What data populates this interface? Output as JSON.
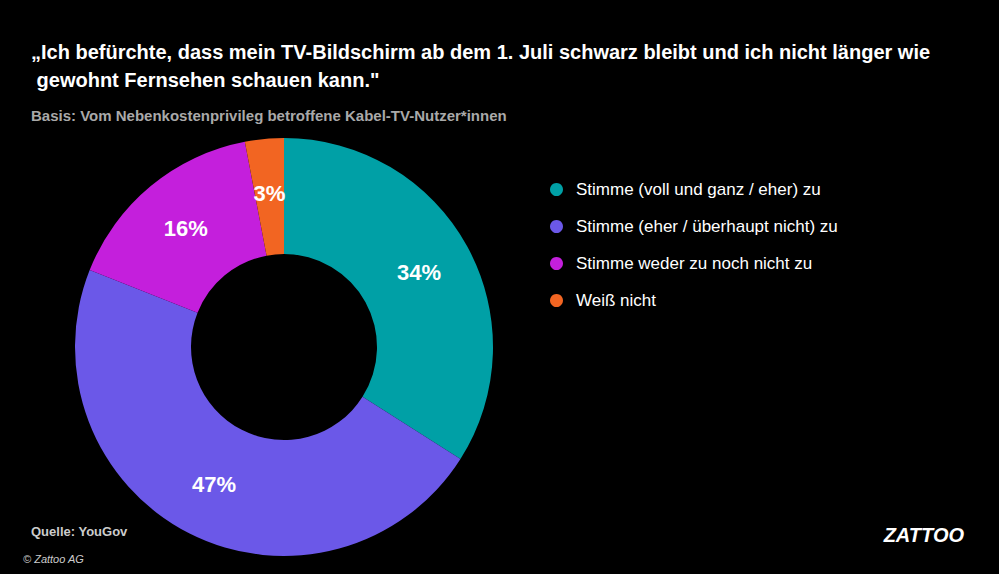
{
  "chart_data": {
    "type": "pie",
    "title": "„Ich befürchte, dass mein TV-Bildschirm ab dem 1. Juli schwarz bleibt und ich nicht länger wie gewohnt Fernsehen schauen kann.\"",
    "subtitle": "Basis: Vom Nebenkostenprivileg betroffene Kabel-TV-Nutzer*innen",
    "categories": [
      "Stimme (voll und ganz / eher) zu",
      "Stimme (eher / überhaupt nicht) zu",
      "Stimme weder zu noch nicht zu",
      "Weiß nicht"
    ],
    "values": [
      34,
      47,
      16,
      3
    ],
    "value_labels": [
      "34%",
      "47%",
      "16%",
      "3%"
    ],
    "colors": [
      "#00a0a6",
      "#6b58e8",
      "#c41fdc",
      "#f26522"
    ],
    "data_labels": true,
    "legend": "right",
    "annotations": [
      "Quelle: YouGov",
      "© Zattoo AG",
      "ZATTOO"
    ]
  }
}
